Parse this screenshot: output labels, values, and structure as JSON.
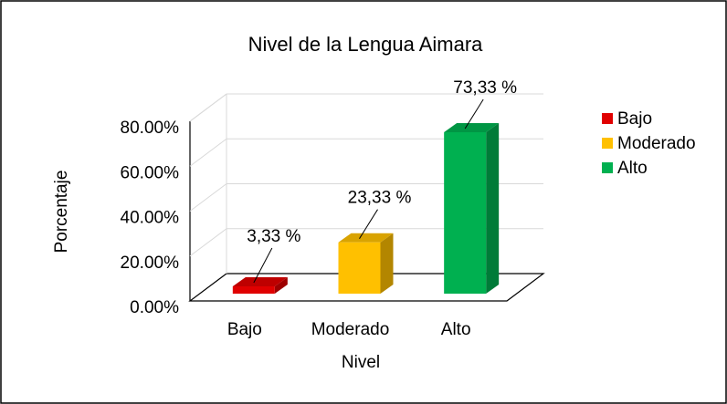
{
  "chart_data": {
    "type": "bar3d",
    "title": "Nivel de la Lengua Aimara",
    "categories": [
      "Bajo",
      "Moderado",
      "Alto"
    ],
    "values": [
      3.33,
      23.33,
      73.33
    ],
    "value_labels": [
      "3,33 %",
      "23,33 %",
      "73,33 %"
    ],
    "colors": [
      "#e00000",
      "#ffc000",
      "#00b050"
    ],
    "x_label": "Nivel",
    "y_label": "Porcentaje",
    "ylim": [
      0,
      80
    ],
    "yticks": [
      {
        "value": 0,
        "label": "0.00%"
      },
      {
        "value": 20,
        "label": "20.00%"
      },
      {
        "value": 40,
        "label": "40.00%"
      },
      {
        "value": 60,
        "label": "60.00%"
      },
      {
        "value": 80,
        "label": "80.00%"
      }
    ],
    "grid": true,
    "legend": "right"
  }
}
